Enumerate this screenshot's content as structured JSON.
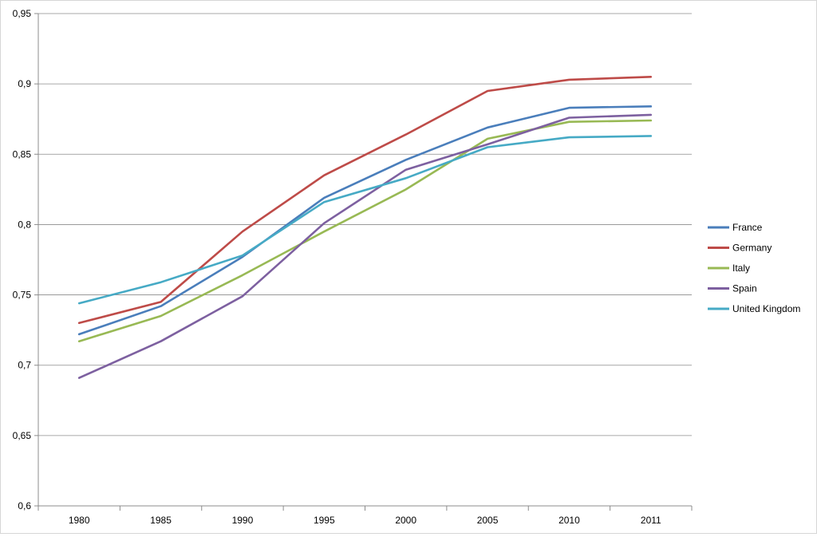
{
  "chart_data": {
    "type": "line",
    "title": "",
    "xlabel": "",
    "ylabel": "",
    "categories": [
      "1980",
      "1985",
      "1990",
      "1995",
      "2000",
      "2005",
      "2010",
      "2011"
    ],
    "y_ticks": [
      "0,6",
      "0,65",
      "0,7",
      "0,75",
      "0,8",
      "0,85",
      "0,9",
      "0,95"
    ],
    "ylim": [
      0.6,
      0.95
    ],
    "grid": "horizontal",
    "legend_position": "right",
    "series": [
      {
        "name": "France",
        "color": "#4a7ebb",
        "values": [
          0.722,
          0.742,
          0.777,
          0.819,
          0.846,
          0.869,
          0.883,
          0.884
        ]
      },
      {
        "name": "Germany",
        "color": "#be4b48",
        "values": [
          0.73,
          0.745,
          0.795,
          0.835,
          0.864,
          0.895,
          0.903,
          0.905
        ]
      },
      {
        "name": "Italy",
        "color": "#98b954",
        "values": [
          0.717,
          0.735,
          0.764,
          0.795,
          0.825,
          0.861,
          0.873,
          0.874
        ]
      },
      {
        "name": "Spain",
        "color": "#7d60a0",
        "values": [
          0.691,
          0.717,
          0.749,
          0.801,
          0.839,
          0.857,
          0.876,
          0.878
        ]
      },
      {
        "name": "United Kingdom",
        "color": "#46aac5",
        "values": [
          0.744,
          0.759,
          0.778,
          0.816,
          0.833,
          0.855,
          0.862,
          0.863
        ]
      }
    ]
  }
}
